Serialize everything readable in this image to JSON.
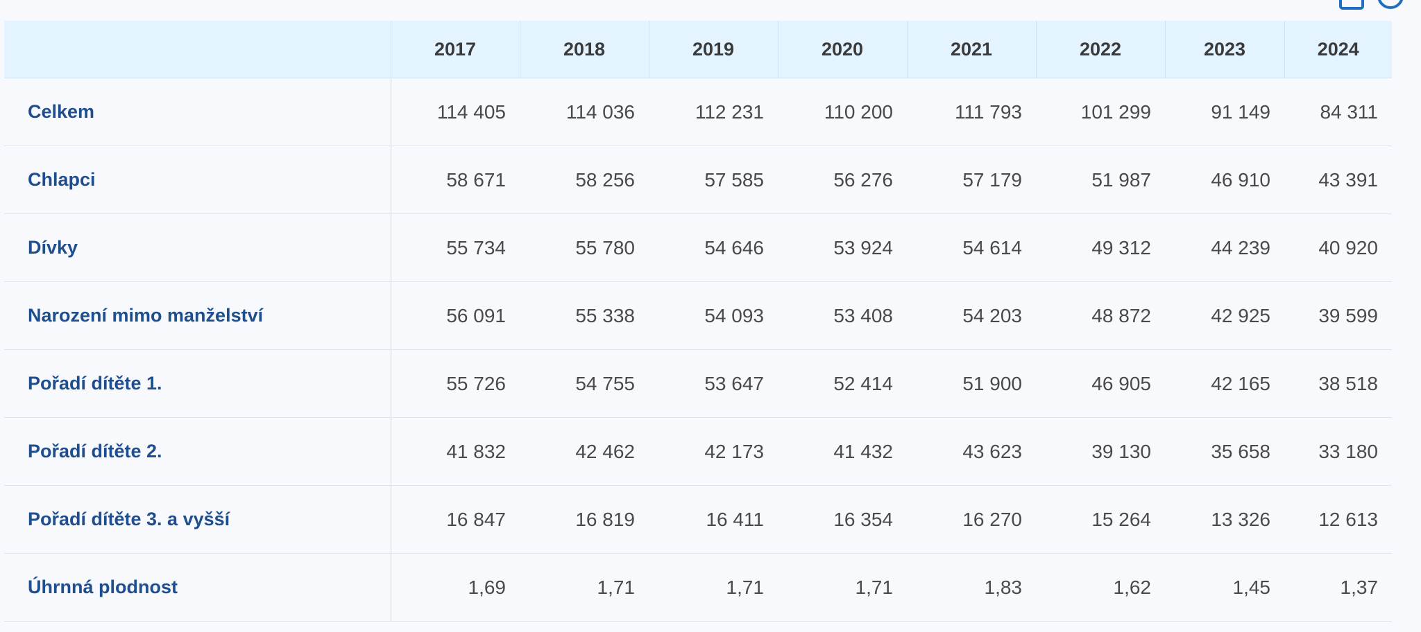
{
  "toolbar": {
    "icons": [
      "table-icon",
      "info-icon"
    ]
  },
  "table": {
    "columns": [
      "",
      "2017",
      "2018",
      "2019",
      "2020",
      "2021",
      "2022",
      "2023",
      "2024"
    ],
    "rows": [
      {
        "label": "Celkem",
        "values": [
          "114 405",
          "114 036",
          "112 231",
          "110 200",
          "111 793",
          "101 299",
          "91 149",
          "84 311"
        ]
      },
      {
        "label": "Chlapci",
        "values": [
          "58 671",
          "58 256",
          "57 585",
          "56 276",
          "57 179",
          "51 987",
          "46 910",
          "43 391"
        ]
      },
      {
        "label": "Dívky",
        "values": [
          "55 734",
          "55 780",
          "54 646",
          "53 924",
          "54 614",
          "49 312",
          "44 239",
          "40 920"
        ]
      },
      {
        "label": "Narození mimo manželství",
        "values": [
          "56 091",
          "55 338",
          "54 093",
          "53 408",
          "54 203",
          "48 872",
          "42 925",
          "39 599"
        ]
      },
      {
        "label": "Pořadí dítěte 1.",
        "values": [
          "55 726",
          "54 755",
          "53 647",
          "52 414",
          "51 900",
          "46 905",
          "42 165",
          "38 518"
        ]
      },
      {
        "label": "Pořadí dítěte 2.",
        "values": [
          "41 832",
          "42 462",
          "42 173",
          "41 432",
          "43 623",
          "39 130",
          "35 658",
          "33 180"
        ]
      },
      {
        "label": "Pořadí dítěte 3. a vyšší",
        "values": [
          "16 847",
          "16 819",
          "16 411",
          "16 354",
          "16 270",
          "15 264",
          "13 326",
          "12 613"
        ]
      },
      {
        "label": "Úhrnná plodnost",
        "values": [
          "1,69",
          "1,71",
          "1,71",
          "1,71",
          "1,83",
          "1,62",
          "1,45",
          "1,37"
        ]
      }
    ]
  },
  "colors": {
    "header_bg": "#e3f3ff",
    "label_text": "#1f4e8f",
    "value_text": "#4a4a4a",
    "icon": "#1e6fbf"
  }
}
